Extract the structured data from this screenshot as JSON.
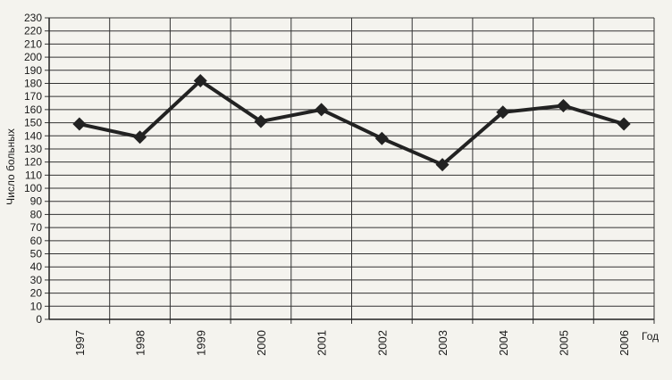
{
  "chart_data": {
    "type": "line",
    "title": "",
    "xlabel": "Год",
    "ylabel": "Число больных",
    "categories": [
      "1997",
      "1998",
      "1999",
      "2000",
      "2001",
      "2002",
      "2003",
      "2004",
      "2005",
      "2006"
    ],
    "series": [
      {
        "values": [
          149,
          139,
          182,
          151,
          160,
          138,
          118,
          158,
          163,
          149
        ]
      }
    ],
    "ylim": [
      0,
      230
    ],
    "ytick_step": 10,
    "grid": true,
    "legend": "none",
    "line_color": "#222222",
    "marker": "diamond"
  }
}
